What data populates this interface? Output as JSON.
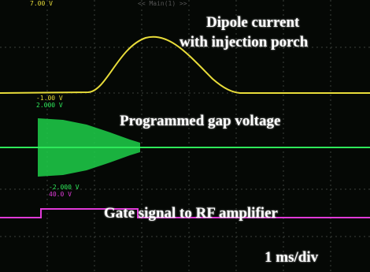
{
  "top_bar": {
    "scale": "7.00 V",
    "timebase": "<< Main(1) >>"
  },
  "traces": [
    {
      "label_lines": [
        "Dipole current",
        "with injection porch"
      ],
      "offset": "-1.00 V"
    },
    {
      "scale": "2.000 V",
      "label": "Programmed gap voltage",
      "offset": "-2.000 V"
    },
    {
      "scale": "40.0 V",
      "label": "Gate signal to RF amplifier"
    }
  ],
  "time_scale": "1 ms/div"
}
